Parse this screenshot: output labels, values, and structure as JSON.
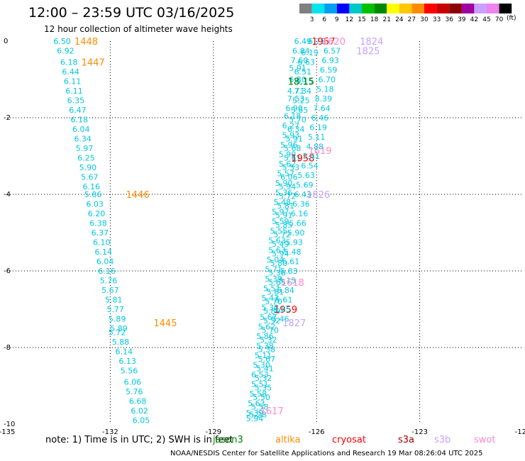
{
  "header": {
    "title": "12:00 – 23:59 UTC 03/16/2025",
    "subtitle": "12 hour collection of altimeter wave heights"
  },
  "colorbar": {
    "unit": "(ft)",
    "ticks": [
      "3",
      "6",
      "9",
      "12",
      "15",
      "18",
      "21",
      "24",
      "27",
      "30",
      "33",
      "36",
      "39",
      "42",
      "45",
      "70"
    ],
    "colors": [
      "#808080",
      "#00e5ee",
      "#00a0f0",
      "#0000ff",
      "#00c8c8",
      "#00c000",
      "#008800",
      "#ffff00",
      "#ffc800",
      "#ff8c00",
      "#ff0000",
      "#c80000",
      "#8b0000",
      "#a000a0",
      "#c8a0ff",
      "#ee82ee",
      "#000000"
    ]
  },
  "footer": {
    "note": "note:  1)  Time is in UTC;  2)  SWH is in feet",
    "credit": "NOAA/NESDIS Center for Satellite Applications and Research    19 Mar 08:26:04 UTC 2025"
  },
  "legend": [
    {
      "name": "jason3",
      "color": "#008000"
    },
    {
      "name": "altika",
      "color": "#ff8c00"
    },
    {
      "name": "cryosat",
      "color": "#ff0000"
    },
    {
      "name": "s3a",
      "color": "#a00000"
    },
    {
      "name": "s3b",
      "color": "#c8a0ff"
    },
    {
      "name": "swot",
      "color": "#ff88cc"
    }
  ],
  "chart_data": {
    "type": "scatter",
    "title": "12 hour collection of altimeter wave heights",
    "xlim": [
      -135,
      -120
    ],
    "ylim": [
      -10,
      0
    ],
    "x_ticks": [
      "-135",
      "-132",
      "-129",
      "-126",
      "-123",
      "-120"
    ],
    "y_ticks": [
      "0",
      "-2",
      "-4",
      "-6",
      "-8",
      "-10"
    ],
    "grid": true,
    "series": [
      {
        "name": "altika",
        "color": "#00c8e0",
        "time_labels": [
          {
            "x": -132.7,
            "y": 0.0,
            "text": "1448",
            "color": "#ff8c00"
          },
          {
            "x": -132.5,
            "y": -0.55,
            "text": "1447",
            "color": "#ff8c00"
          },
          {
            "x": -131.2,
            "y": -4.0,
            "text": "1446",
            "color": "#ff8c00"
          },
          {
            "x": -130.4,
            "y": -7.35,
            "text": "1445",
            "color": "#ff8c00"
          }
        ],
        "points": [
          {
            "x": -133.4,
            "y": 0.0,
            "v": "6.50"
          },
          {
            "x": -133.3,
            "y": -0.25,
            "v": "6.92"
          },
          {
            "x": -133.2,
            "y": -0.55,
            "v": "6.18"
          },
          {
            "x": -133.15,
            "y": -0.8,
            "v": "6.44"
          },
          {
            "x": -133.1,
            "y": -1.05,
            "v": "6.11"
          },
          {
            "x": -133.05,
            "y": -1.3,
            "v": "6.11"
          },
          {
            "x": -133.0,
            "y": -1.55,
            "v": "6.35"
          },
          {
            "x": -132.95,
            "y": -1.8,
            "v": "6.47"
          },
          {
            "x": -132.9,
            "y": -2.05,
            "v": "6.18"
          },
          {
            "x": -132.85,
            "y": -2.3,
            "v": "6.04"
          },
          {
            "x": -132.8,
            "y": -2.55,
            "v": "6.34"
          },
          {
            "x": -132.75,
            "y": -2.8,
            "v": "5.97"
          },
          {
            "x": -132.7,
            "y": -3.05,
            "v": "6.25"
          },
          {
            "x": -132.65,
            "y": -3.3,
            "v": "5.90"
          },
          {
            "x": -132.6,
            "y": -3.55,
            "v": "5.67"
          },
          {
            "x": -132.55,
            "y": -3.8,
            "v": "6.16"
          },
          {
            "x": -132.5,
            "y": -4.0,
            "v": "5.86"
          },
          {
            "x": -132.45,
            "y": -4.25,
            "v": "6.03"
          },
          {
            "x": -132.4,
            "y": -4.5,
            "v": "6.20"
          },
          {
            "x": -132.35,
            "y": -4.75,
            "v": "6.38"
          },
          {
            "x": -132.3,
            "y": -5.0,
            "v": "6.37"
          },
          {
            "x": -132.25,
            "y": -5.25,
            "v": "6.10"
          },
          {
            "x": -132.2,
            "y": -5.5,
            "v": "6.14"
          },
          {
            "x": -132.15,
            "y": -5.75,
            "v": "6.04"
          },
          {
            "x": -132.1,
            "y": -6.0,
            "v": "6.16"
          },
          {
            "x": -132.05,
            "y": -6.25,
            "v": "5.76"
          },
          {
            "x": -132.0,
            "y": -6.5,
            "v": "5.67"
          },
          {
            "x": -131.9,
            "y": -6.75,
            "v": "5.81"
          },
          {
            "x": -131.85,
            "y": -7.0,
            "v": "5.77"
          },
          {
            "x": -131.8,
            "y": -7.25,
            "v": "5.89"
          },
          {
            "x": -131.75,
            "y": -7.5,
            "v": "5.89"
          },
          {
            "x": -131.8,
            "y": -7.6,
            "v": "5.72"
          },
          {
            "x": -131.7,
            "y": -7.85,
            "v": "5.88"
          },
          {
            "x": -131.6,
            "y": -8.1,
            "v": "6.14"
          },
          {
            "x": -131.5,
            "y": -8.35,
            "v": "6.13"
          },
          {
            "x": -131.45,
            "y": -8.6,
            "v": "5.56"
          },
          {
            "x": -131.35,
            "y": -8.9,
            "v": "6.06"
          },
          {
            "x": -131.3,
            "y": -9.15,
            "v": "5.76"
          },
          {
            "x": -131.2,
            "y": -9.4,
            "v": "6.68"
          },
          {
            "x": -131.15,
            "y": -9.65,
            "v": "6.02"
          },
          {
            "x": -131.1,
            "y": -9.9,
            "v": "6.05"
          }
        ]
      },
      {
        "name": "cryosat",
        "color": "#00c8e0",
        "time_labels": [
          {
            "x": -125.8,
            "y": 0.0,
            "text": "1957",
            "color": "#ff0000"
          },
          {
            "x": -126.4,
            "y": -3.05,
            "text": "1958",
            "color": "#ff0000"
          },
          {
            "x": -126.9,
            "y": -7.0,
            "text": "1959",
            "color": "#ff0000"
          }
        ],
        "points": [
          {
            "x": -126.4,
            "y": 0.0,
            "v": "6.49"
          },
          {
            "x": -126.0,
            "y": 0.0,
            "v": "6.75"
          },
          {
            "x": -126.45,
            "y": -0.25,
            "v": "6.84"
          },
          {
            "x": -126.2,
            "y": -0.3,
            "v": "6.19"
          },
          {
            "x": -126.5,
            "y": -0.5,
            "v": "7.60"
          },
          {
            "x": -126.3,
            "y": -0.55,
            "v": "6.63"
          },
          {
            "x": -126.55,
            "y": -0.7,
            "v": "5.91"
          },
          {
            "x": -126.4,
            "y": -0.8,
            "v": "6.51"
          },
          {
            "x": -126.55,
            "y": -1.0,
            "v": "6.80"
          },
          {
            "x": -126.35,
            "y": -1.05,
            "v": "6.15"
          },
          {
            "x": -126.6,
            "y": -1.3,
            "v": "4.71"
          },
          {
            "x": -126.4,
            "y": -1.3,
            "v": "7.34"
          },
          {
            "x": -126.6,
            "y": -1.5,
            "v": "7.53"
          },
          {
            "x": -126.45,
            "y": -1.55,
            "v": "5.25"
          },
          {
            "x": -126.65,
            "y": -1.75,
            "v": "6.90"
          },
          {
            "x": -126.5,
            "y": -1.8,
            "v": "5.65"
          },
          {
            "x": -126.7,
            "y": -1.95,
            "v": "6.18"
          },
          {
            "x": -126.55,
            "y": -2.05,
            "v": "5.70"
          },
          {
            "x": -126.75,
            "y": -2.2,
            "v": "6.27"
          },
          {
            "x": -126.6,
            "y": -2.3,
            "v": "6.34"
          },
          {
            "x": -126.75,
            "y": -2.45,
            "v": "5.93"
          },
          {
            "x": -126.65,
            "y": -2.55,
            "v": "5.91"
          },
          {
            "x": -126.8,
            "y": -2.7,
            "v": "5.96"
          },
          {
            "x": -126.7,
            "y": -2.8,
            "v": "5.68"
          },
          {
            "x": -126.85,
            "y": -2.95,
            "v": "5.90"
          },
          {
            "x": -126.7,
            "y": -3.05,
            "v": "5.61"
          },
          {
            "x": -126.85,
            "y": -3.2,
            "v": "5.62"
          },
          {
            "x": -126.75,
            "y": -3.3,
            "v": "5.53"
          },
          {
            "x": -126.9,
            "y": -3.45,
            "v": "5.57"
          },
          {
            "x": -126.8,
            "y": -3.55,
            "v": "6.06"
          },
          {
            "x": -126.95,
            "y": -3.7,
            "v": "5.90"
          },
          {
            "x": -126.85,
            "y": -3.8,
            "v": "5.94"
          },
          {
            "x": -126.95,
            "y": -3.95,
            "v": "5.36"
          },
          {
            "x": -126.85,
            "y": -4.05,
            "v": "5.72"
          },
          {
            "x": -127.0,
            "y": -4.2,
            "v": "5.48"
          },
          {
            "x": -126.9,
            "y": -4.3,
            "v": "5.81"
          },
          {
            "x": -127.05,
            "y": -4.45,
            "v": "5.97"
          },
          {
            "x": -126.95,
            "y": -4.55,
            "v": "5.91"
          },
          {
            "x": -127.05,
            "y": -4.7,
            "v": "5.59"
          },
          {
            "x": -126.95,
            "y": -4.8,
            "v": "5.85"
          },
          {
            "x": -127.1,
            "y": -4.95,
            "v": "5.55"
          },
          {
            "x": -127.0,
            "y": -5.05,
            "v": "5.72"
          },
          {
            "x": -127.15,
            "y": -5.2,
            "v": "5.63"
          },
          {
            "x": -127.05,
            "y": -5.3,
            "v": "5.49"
          },
          {
            "x": -127.15,
            "y": -5.45,
            "v": "5.63"
          },
          {
            "x": -127.05,
            "y": -5.55,
            "v": "5.94"
          },
          {
            "x": -127.2,
            "y": -5.7,
            "v": "5.04"
          },
          {
            "x": -127.1,
            "y": -5.8,
            "v": "5.80"
          },
          {
            "x": -127.25,
            "y": -5.95,
            "v": "5.71"
          },
          {
            "x": -127.15,
            "y": -6.05,
            "v": "5.36"
          },
          {
            "x": -127.25,
            "y": -6.2,
            "v": "5.39"
          },
          {
            "x": -127.15,
            "y": -6.3,
            "v": "5.65"
          },
          {
            "x": -127.3,
            "y": -6.45,
            "v": "5.51"
          },
          {
            "x": -127.2,
            "y": -6.55,
            "v": "5.61"
          },
          {
            "x": -127.35,
            "y": -6.7,
            "v": "5.43"
          },
          {
            "x": -127.25,
            "y": -6.8,
            "v": "5.70"
          },
          {
            "x": -127.35,
            "y": -6.95,
            "v": "5.32"
          },
          {
            "x": -127.3,
            "y": -7.05,
            "v": "5.89"
          },
          {
            "x": -127.4,
            "y": -7.2,
            "v": "5.67"
          },
          {
            "x": -127.3,
            "y": -7.3,
            "v": "5.52"
          },
          {
            "x": -127.45,
            "y": -7.45,
            "v": "5.62"
          },
          {
            "x": -127.35,
            "y": -7.55,
            "v": "5.70"
          },
          {
            "x": -127.5,
            "y": -7.7,
            "v": "5.86"
          },
          {
            "x": -127.4,
            "y": -7.8,
            "v": "5.32"
          },
          {
            "x": -127.5,
            "y": -7.95,
            "v": "5.38"
          },
          {
            "x": -127.45,
            "y": -8.05,
            "v": "5.38"
          },
          {
            "x": -127.55,
            "y": -8.2,
            "v": "5.11"
          },
          {
            "x": -127.45,
            "y": -8.3,
            "v": "5.67"
          },
          {
            "x": -127.6,
            "y": -8.45,
            "v": "5.30"
          },
          {
            "x": -127.5,
            "y": -8.55,
            "v": "5.41"
          },
          {
            "x": -127.65,
            "y": -8.7,
            "v": "6.53"
          },
          {
            "x": -127.55,
            "y": -8.8,
            "v": "5.32"
          },
          {
            "x": -127.65,
            "y": -8.95,
            "v": "5.51"
          },
          {
            "x": -127.55,
            "y": -9.05,
            "v": "5.35"
          },
          {
            "x": -127.7,
            "y": -9.2,
            "v": "5.58"
          },
          {
            "x": -127.6,
            "y": -9.3,
            "v": "5.50"
          },
          {
            "x": -127.75,
            "y": -9.45,
            "v": "5.63"
          },
          {
            "x": -127.65,
            "y": -9.55,
            "v": "5.58"
          },
          {
            "x": -127.8,
            "y": -9.7,
            "v": "5.39"
          },
          {
            "x": -127.7,
            "y": -9.75,
            "v": "5.28"
          },
          {
            "x": -127.8,
            "y": -9.85,
            "v": "5.94"
          }
        ]
      },
      {
        "name": "s3b",
        "color": "#00c8e0",
        "time_labels": [
          {
            "x": -124.4,
            "y": 0.0,
            "text": "1824",
            "color": "#c8a0ff"
          },
          {
            "x": -124.5,
            "y": -0.25,
            "text": "1825",
            "color": "#c8a0ff"
          },
          {
            "x": -125.95,
            "y": -4.0,
            "text": "1826",
            "color": "#c8a0ff"
          },
          {
            "x": -126.65,
            "y": -7.35,
            "text": "1827",
            "color": "#c8a0ff"
          }
        ],
        "points": [
          {
            "x": -125.55,
            "y": -0.25,
            "v": "6.57"
          },
          {
            "x": -125.6,
            "y": -0.5,
            "v": "6.93"
          },
          {
            "x": -125.65,
            "y": -0.75,
            "v": "6.59"
          },
          {
            "x": -125.7,
            "y": -1.0,
            "v": "6.70"
          },
          {
            "x": -125.75,
            "y": -1.25,
            "v": "5.18"
          },
          {
            "x": -125.8,
            "y": -1.5,
            "v": "8.39"
          },
          {
            "x": -125.85,
            "y": -1.75,
            "v": "7.64"
          },
          {
            "x": -125.9,
            "y": -2.0,
            "v": "6.46"
          },
          {
            "x": -125.95,
            "y": -2.25,
            "v": "6.19"
          },
          {
            "x": -126.0,
            "y": -2.5,
            "v": "5.11"
          },
          {
            "x": -126.05,
            "y": -2.75,
            "v": "4.88"
          },
          {
            "x": -126.15,
            "y": -3.0,
            "v": "5.41"
          },
          {
            "x": -126.2,
            "y": -3.25,
            "v": "6.54"
          },
          {
            "x": -126.3,
            "y": -3.5,
            "v": "5.63"
          },
          {
            "x": -126.35,
            "y": -3.75,
            "v": "5.69"
          },
          {
            "x": -126.4,
            "y": -4.0,
            "v": "6.43"
          },
          {
            "x": -126.45,
            "y": -4.25,
            "v": "6.36"
          },
          {
            "x": -126.5,
            "y": -4.5,
            "v": "6.16"
          },
          {
            "x": -126.55,
            "y": -4.75,
            "v": "5.66"
          },
          {
            "x": -126.6,
            "y": -5.0,
            "v": "5.90"
          },
          {
            "x": -126.65,
            "y": -5.25,
            "v": "5.93"
          },
          {
            "x": -126.7,
            "y": -5.5,
            "v": "5.48"
          },
          {
            "x": -126.75,
            "y": -5.75,
            "v": "5.61"
          },
          {
            "x": -126.8,
            "y": -6.0,
            "v": "5.83"
          },
          {
            "x": -126.85,
            "y": -6.25,
            "v": "5.15"
          },
          {
            "x": -126.9,
            "y": -6.5,
            "v": "5.84"
          },
          {
            "x": -126.95,
            "y": -6.75,
            "v": "5.61"
          },
          {
            "x": -127.0,
            "y": -7.0,
            "v": "5.85"
          },
          {
            "x": -127.05,
            "y": -7.25,
            "v": "5.46"
          }
        ]
      },
      {
        "name": "swot",
        "color": "#00c8e0",
        "time_labels": [
          {
            "x": -125.5,
            "y": 0.0,
            "text": "1620",
            "color": "#ff88cc"
          },
          {
            "x": -125.9,
            "y": -2.85,
            "text": "1619",
            "color": "#ff88cc"
          },
          {
            "x": -126.7,
            "y": -6.3,
            "text": "1618",
            "color": "#ff88cc"
          },
          {
            "x": -127.3,
            "y": -9.65,
            "text": "1617",
            "color": "#ff88cc"
          }
        ]
      },
      {
        "name": "jason3",
        "color": "#008000",
        "time_labels": [
          {
            "x": -126.45,
            "y": -1.05,
            "text": "18.15",
            "color": "#008000"
          }
        ]
      }
    ]
  }
}
